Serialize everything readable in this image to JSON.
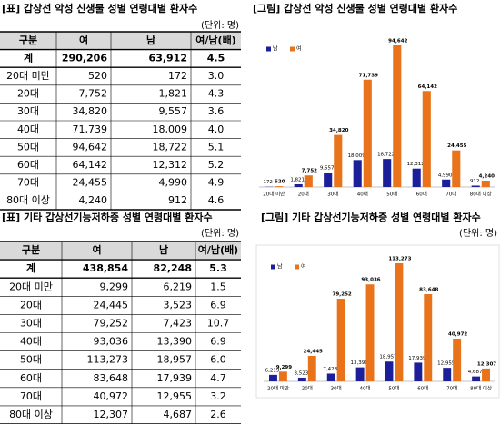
{
  "tables": [
    {
      "title": "[표] 갑상선 악성 신생물 성별 연령대별 환자수",
      "unit": "(단위: 명)",
      "header": [
        "구분",
        "여",
        "남",
        "여/남(배)"
      ],
      "rows": [
        [
          "계",
          "290,206",
          "63,912",
          "4.5"
        ],
        [
          "20대 미만",
          "520",
          "172",
          "3.0"
        ],
        [
          "20대",
          "7,752",
          "1,821",
          "4.3"
        ],
        [
          "30대",
          "34,820",
          "9,557",
          "3.6"
        ],
        [
          "40대",
          "71,739",
          "18,009",
          "4.0"
        ],
        [
          "50대",
          "94,642",
          "18,722",
          "5.1"
        ],
        [
          "60대",
          "64,142",
          "12,312",
          "5.2"
        ],
        [
          "70대",
          "24,455",
          "4,990",
          "4.9"
        ],
        [
          "80대 이상",
          "4,240",
          "912",
          "4.6"
        ]
      ]
    },
    {
      "title": "[표] 기타 갑상선기능저하증 성별 연령대별 환자수",
      "unit": "(단위: 명)",
      "header": [
        "구분",
        "여",
        "남",
        "여/남(배)"
      ],
      "rows": [
        [
          "계",
          "438,854",
          "82,248",
          "5.3"
        ],
        [
          "20대 미만",
          "9,299",
          "6,219",
          "1.5"
        ],
        [
          "20대",
          "24,445",
          "3,523",
          "6.9"
        ],
        [
          "30대",
          "79,252",
          "7,423",
          "10.7"
        ],
        [
          "40대",
          "93,036",
          "13,390",
          "6.9"
        ],
        [
          "50대",
          "113,273",
          "18,957",
          "6.0"
        ],
        [
          "60대",
          "83,648",
          "17,939",
          "4.7"
        ],
        [
          "70대",
          "40,972",
          "12,955",
          "3.2"
        ],
        [
          "80대 이상",
          "12,307",
          "4,687",
          "2.6"
        ]
      ]
    }
  ],
  "chart_data": [
    {
      "type": "bar",
      "title": "[그림] 갑상선 악성 신생물 성별 연령대별 환자수",
      "categories": [
        "20대 미만",
        "20대",
        "30대",
        "40대",
        "50대",
        "60대",
        "70대",
        "80대 이상"
      ],
      "series": [
        {
          "name": "남",
          "color": "#1c1f9a",
          "values": [
            172,
            1821,
            9557,
            18009,
            18722,
            12312,
            4990,
            912
          ],
          "value_labels": [
            "172",
            "1,821",
            "9,557",
            "18,009",
            "18,722",
            "12,312",
            "4,990",
            "912"
          ]
        },
        {
          "name": "여",
          "color": "#e8731a",
          "values": [
            520,
            7752,
            34820,
            71739,
            94642,
            64142,
            24455,
            4240
          ],
          "value_labels": [
            "520",
            "7,752",
            "34,820",
            "71,739",
            "94,642",
            "64,142",
            "24,455",
            "4,240"
          ]
        }
      ]
    },
    {
      "type": "bar",
      "title": "[그림] 기타 갑상선기능저하증 성별 연령대별 환자수",
      "unit": "(단위: 명)",
      "categories": [
        "20대 미만",
        "20대",
        "30대",
        "40대",
        "50대",
        "60대",
        "70대",
        "80대 이상"
      ],
      "series": [
        {
          "name": "남",
          "color": "#1c1f9a",
          "values": [
            6219,
            3523,
            7423,
            13390,
            18957,
            17939,
            12955,
            4687
          ],
          "value_labels": [
            "6,219",
            "3,523",
            "7,423",
            "13,390",
            "18,957",
            "17,939",
            "12,955",
            "4,687"
          ]
        },
        {
          "name": "여",
          "color": "#e8731a",
          "values": [
            9299,
            24445,
            79252,
            93036,
            113273,
            83648,
            40972,
            12307
          ],
          "value_labels": [
            "9,299",
            "24,445",
            "79,252",
            "93,036",
            "113,273",
            "83,648",
            "40,972",
            "12,307"
          ]
        }
      ]
    }
  ]
}
